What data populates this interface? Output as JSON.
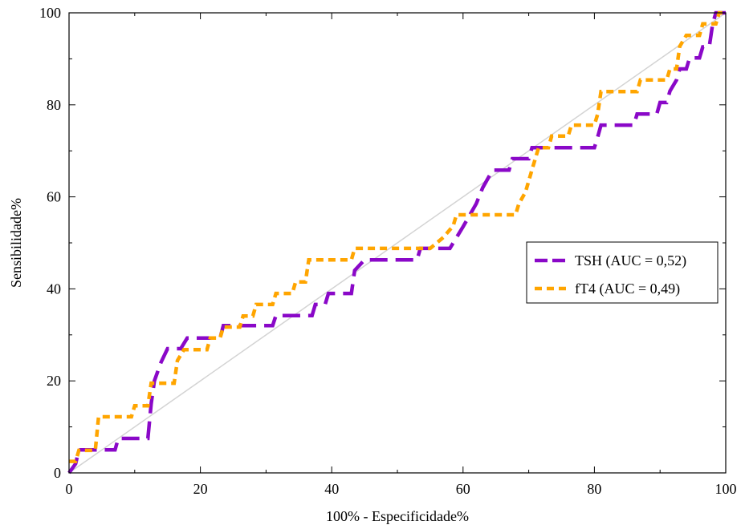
{
  "chart_data": {
    "type": "line",
    "title": "",
    "xlabel": "100% - Especificidade%",
    "ylabel": "Sensibilidade%",
    "xlim": [
      0,
      100
    ],
    "ylim": [
      0,
      100
    ],
    "x_ticks": [
      "0",
      "20",
      "40",
      "60",
      "80",
      "100"
    ],
    "y_ticks": [
      "0",
      "20",
      "40",
      "60",
      "80",
      "100"
    ],
    "grid": false,
    "legend_position": "right",
    "reference_line": {
      "from": [
        0,
        0
      ],
      "to": [
        100,
        100
      ],
      "color": "#d3d3d3"
    },
    "series": [
      {
        "name": "TSH (AUC = 0,52)",
        "color": "#8a08c8",
        "dash": "long-dash",
        "points": [
          [
            0,
            0
          ],
          [
            1,
            2
          ],
          [
            1.5,
            5
          ],
          [
            7,
            5
          ],
          [
            7.5,
            7.5
          ],
          [
            12,
            7.5
          ],
          [
            12.5,
            15
          ],
          [
            13,
            20
          ],
          [
            14,
            24
          ],
          [
            15,
            27
          ],
          [
            17,
            27
          ],
          [
            18,
            29.3
          ],
          [
            23,
            29.3
          ],
          [
            23.5,
            32
          ],
          [
            31,
            32
          ],
          [
            31.5,
            34.2
          ],
          [
            37,
            34.2
          ],
          [
            37.5,
            36.6
          ],
          [
            39,
            36.6
          ],
          [
            39.5,
            39
          ],
          [
            43,
            39
          ],
          [
            43.5,
            44
          ],
          [
            45,
            46.3
          ],
          [
            53,
            46.3
          ],
          [
            53.5,
            48.8
          ],
          [
            58,
            48.8
          ],
          [
            60,
            53.5
          ],
          [
            62,
            58.5
          ],
          [
            63,
            62
          ],
          [
            64.5,
            65.8
          ],
          [
            67,
            65.8
          ],
          [
            67.5,
            68.3
          ],
          [
            70,
            68.3
          ],
          [
            70.5,
            70.7
          ],
          [
            80,
            70.7
          ],
          [
            80.5,
            73
          ],
          [
            81,
            75.6
          ],
          [
            86,
            75.6
          ],
          [
            86.5,
            78
          ],
          [
            89.5,
            78
          ],
          [
            90,
            80.5
          ],
          [
            91,
            80.5
          ],
          [
            91.5,
            83
          ],
          [
            92.5,
            85.4
          ],
          [
            93,
            87.8
          ],
          [
            94,
            87.8
          ],
          [
            94.5,
            90.2
          ],
          [
            96,
            90.2
          ],
          [
            96.5,
            92.6
          ],
          [
            97.5,
            92.6
          ],
          [
            98,
            97.5
          ],
          [
            98.5,
            100
          ],
          [
            100,
            100
          ]
        ]
      },
      {
        "name": "fT4 (AUC = 0,49)",
        "color": "#ffa500",
        "dash": "short-dash",
        "points": [
          [
            0,
            2.5
          ],
          [
            1,
            2.5
          ],
          [
            1.5,
            4.9
          ],
          [
            4,
            4.9
          ],
          [
            4.5,
            12.2
          ],
          [
            9.5,
            12.2
          ],
          [
            10,
            14.6
          ],
          [
            12,
            14.6
          ],
          [
            12.5,
            19.5
          ],
          [
            16,
            19.5
          ],
          [
            16.5,
            24.4
          ],
          [
            17.5,
            26.8
          ],
          [
            21,
            26.8
          ],
          [
            21.5,
            29.3
          ],
          [
            23,
            29.3
          ],
          [
            23.5,
            31.7
          ],
          [
            26,
            31.7
          ],
          [
            26.5,
            34.1
          ],
          [
            28,
            34.1
          ],
          [
            28.5,
            36.6
          ],
          [
            31,
            36.6
          ],
          [
            31.5,
            39
          ],
          [
            34,
            39
          ],
          [
            34.5,
            41.5
          ],
          [
            36,
            41.5
          ],
          [
            36.5,
            46.3
          ],
          [
            43,
            46.3
          ],
          [
            43.5,
            48.8
          ],
          [
            55,
            48.8
          ],
          [
            57,
            51.2
          ],
          [
            58.5,
            53.7
          ],
          [
            59,
            56.1
          ],
          [
            62,
            56.1
          ],
          [
            62.5,
            56.1
          ],
          [
            68,
            56.1
          ],
          [
            68.5,
            58.5
          ],
          [
            69.5,
            61
          ],
          [
            70.5,
            65.9
          ],
          [
            71,
            68.3
          ],
          [
            71.5,
            70.7
          ],
          [
            72,
            70.7
          ],
          [
            73,
            70.7
          ],
          [
            73.5,
            73.2
          ],
          [
            76,
            73.2
          ],
          [
            76.5,
            75.6
          ],
          [
            80,
            75.6
          ],
          [
            80.5,
            78
          ],
          [
            81,
            82.9
          ],
          [
            86.5,
            82.9
          ],
          [
            87,
            85.4
          ],
          [
            91,
            85.4
          ],
          [
            91.5,
            87.8
          ],
          [
            92.5,
            87.8
          ],
          [
            93,
            92.7
          ],
          [
            94,
            95.1
          ],
          [
            96,
            95.1
          ],
          [
            96.5,
            97.6
          ],
          [
            98.5,
            97.6
          ],
          [
            99,
            100
          ],
          [
            100,
            100
          ]
        ]
      }
    ]
  }
}
